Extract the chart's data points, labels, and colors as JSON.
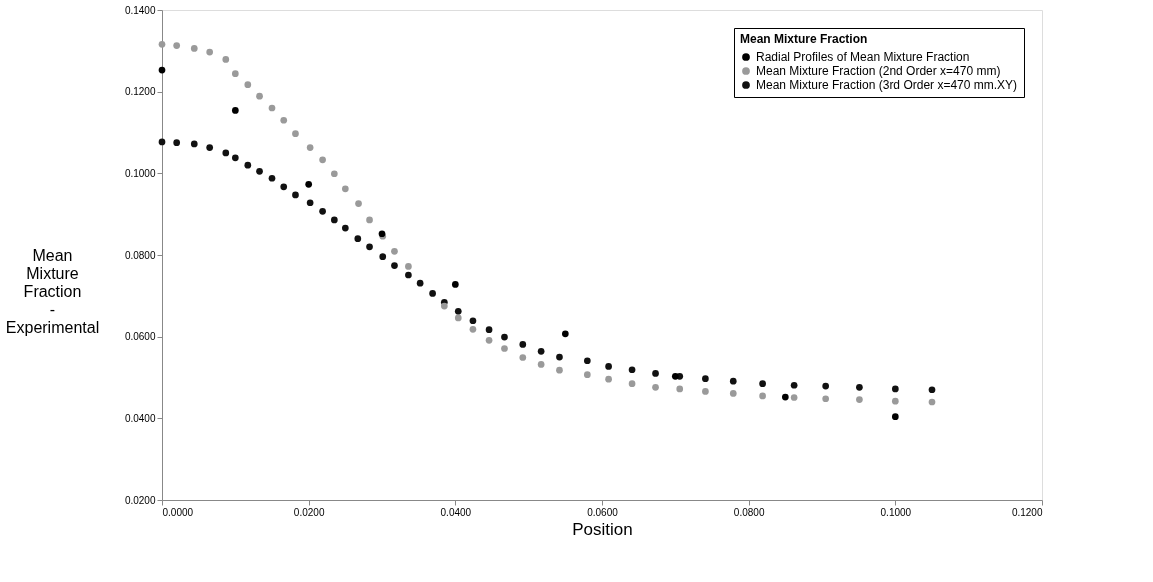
{
  "chart_data": {
    "type": "scatter",
    "xlabel": "Position",
    "ylabel": "Mean Mixture Fraction - Experimental",
    "legend_title": "Mean Mixture Fraction",
    "xlim": [
      0,
      0.12
    ],
    "ylim": [
      0.02,
      0.14
    ],
    "xticks": [
      {
        "value": 0,
        "label": "0.0000"
      },
      {
        "value": 0.02,
        "label": "0.0200"
      },
      {
        "value": 0.04,
        "label": "0.0400"
      },
      {
        "value": 0.06,
        "label": "0.0600"
      },
      {
        "value": 0.08,
        "label": "0.0800"
      },
      {
        "value": 0.1,
        "label": "0.1000"
      },
      {
        "value": 0.12,
        "label": "0.1200"
      }
    ],
    "yticks": [
      {
        "value": 0.02,
        "label": "0.0200"
      },
      {
        "value": 0.04,
        "label": "0.0400"
      },
      {
        "value": 0.06,
        "label": "0.0600"
      },
      {
        "value": 0.08,
        "label": "0.0800"
      },
      {
        "value": 0.1,
        "label": "0.1000"
      },
      {
        "value": 0.12,
        "label": "0.1200"
      },
      {
        "value": 0.14,
        "label": "0.1400"
      }
    ],
    "grid": false,
    "legend": "top right",
    "marker": "circle",
    "series": [
      {
        "name": "Radial Profiles of Mean Mixture Fraction",
        "color": "#000000",
        "x": [
          0,
          0.01,
          0.02,
          0.03,
          0.04,
          0.055,
          0.07,
          0.085,
          0.1
        ],
        "values": [
          0.1253,
          0.1154,
          0.0973,
          0.0852,
          0.0728,
          0.0607,
          0.0503,
          0.0452,
          0.0404
        ]
      },
      {
        "name": "Mean Mixture Fraction (2nd Order x=470 mm)",
        "color": "#9a9a9a",
        "x": [
          0,
          0.002,
          0.0044,
          0.0065,
          0.0087,
          0.01,
          0.0117,
          0.0133,
          0.015,
          0.0166,
          0.0182,
          0.0202,
          0.0219,
          0.0235,
          0.025,
          0.0268,
          0.0283,
          0.0301,
          0.0317,
          0.0336,
          0.0352,
          0.0369,
          0.0385,
          0.0404,
          0.0424,
          0.0446,
          0.0467,
          0.0492,
          0.0517,
          0.0542,
          0.058,
          0.0609,
          0.0641,
          0.0673,
          0.0706,
          0.0741,
          0.0779,
          0.0819,
          0.0862,
          0.0905,
          0.0951,
          0.1,
          0.105
        ],
        "values": [
          0.1316,
          0.1313,
          0.1306,
          0.1297,
          0.1279,
          0.1244,
          0.1217,
          0.1189,
          0.116,
          0.113,
          0.1097,
          0.1063,
          0.1033,
          0.0999,
          0.0962,
          0.0926,
          0.0886,
          0.0846,
          0.0809,
          0.0772,
          null,
          null,
          0.0675,
          0.0646,
          0.0618,
          0.0591,
          0.0571,
          0.0549,
          0.0532,
          0.0518,
          0.0507,
          0.0496,
          0.0485,
          0.0476,
          0.0472,
          0.0466,
          0.0461,
          0.0455,
          0.0451,
          0.0448,
          0.0446,
          0.0442,
          0.044
        ]
      },
      {
        "name": "Mean Mixture Fraction (3rd Order x=470 mm.XY)",
        "color": "#111111",
        "x": [
          0,
          0.002,
          0.0044,
          0.0065,
          0.0087,
          0.01,
          0.0117,
          0.0133,
          0.015,
          0.0166,
          0.0182,
          0.0202,
          0.0219,
          0.0235,
          0.025,
          0.0267,
          0.0283,
          0.0301,
          0.0317,
          0.0336,
          0.0352,
          0.0369,
          0.0385,
          0.0404,
          0.0424,
          0.0446,
          0.0467,
          0.0492,
          0.0517,
          0.0542,
          0.058,
          0.0609,
          0.0641,
          0.0673,
          0.0706,
          0.0741,
          0.0779,
          0.0819,
          0.0862,
          0.0905,
          0.0951,
          0.1,
          0.105
        ],
        "values": [
          0.1077,
          0.1075,
          0.1072,
          0.1063,
          0.105,
          0.1038,
          0.102,
          0.1005,
          0.0988,
          0.0967,
          0.0947,
          0.0928,
          0.0907,
          0.0886,
          0.0866,
          0.084,
          0.082,
          0.0796,
          0.0774,
          0.0751,
          0.0731,
          0.0706,
          0.0684,
          0.0662,
          0.0639,
          0.0617,
          0.0599,
          0.0581,
          0.0564,
          0.055,
          0.0541,
          0.0527,
          0.0519,
          0.051,
          0.0503,
          0.0497,
          0.0491,
          0.0485,
          0.0481,
          0.0479,
          0.0476,
          0.0472,
          0.047
        ]
      }
    ]
  }
}
